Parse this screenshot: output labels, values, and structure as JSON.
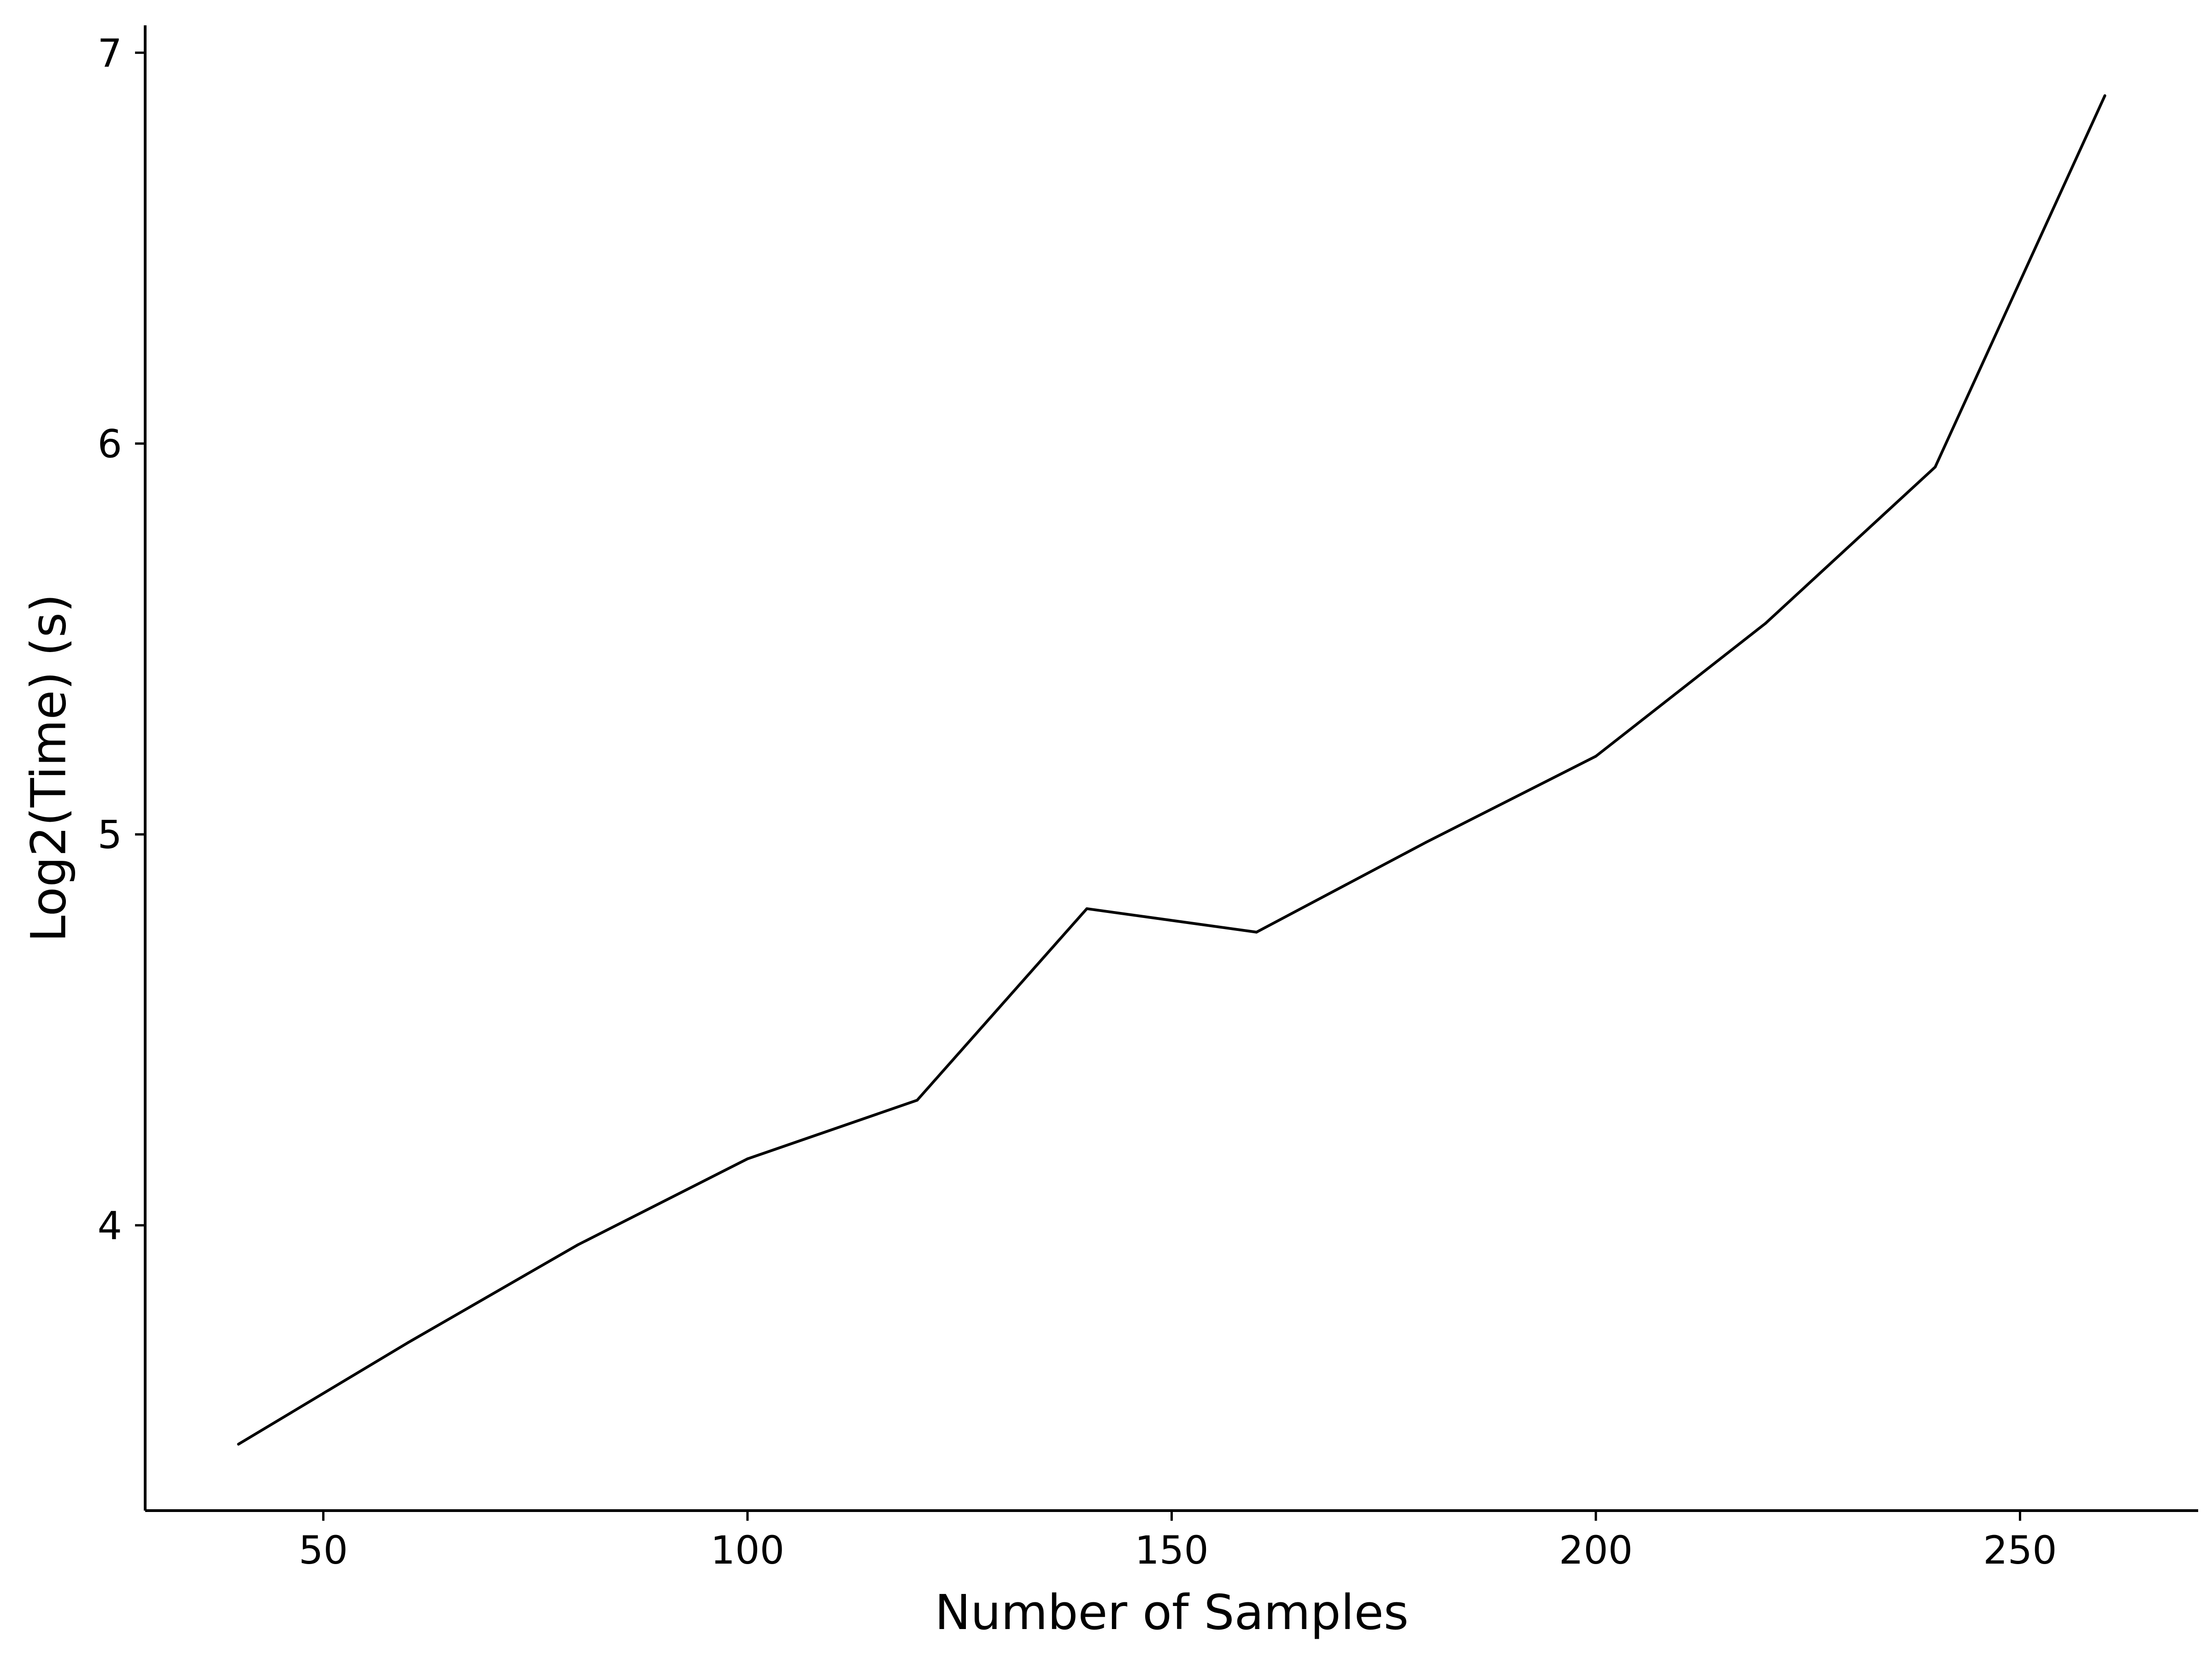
{
  "chart_data": {
    "type": "line",
    "title": "",
    "xlabel": "Number of Samples",
    "ylabel": "Log2(Time) (s)",
    "xlim": [
      29,
      271
    ],
    "ylim": [
      3.27,
      7.07
    ],
    "xticks": [
      50,
      100,
      150,
      200,
      250
    ],
    "yticks": [
      4,
      5,
      6,
      7
    ],
    "grid": false,
    "legend": "none",
    "series": [
      {
        "color": "#000000",
        "x": [
          40,
          60,
          80,
          100,
          120,
          140,
          160,
          180,
          200,
          220,
          240,
          260
        ],
        "y": [
          3.44,
          3.7,
          3.95,
          4.17,
          4.32,
          4.81,
          4.75,
          4.98,
          5.2,
          5.54,
          5.94,
          6.89
        ]
      }
    ]
  }
}
